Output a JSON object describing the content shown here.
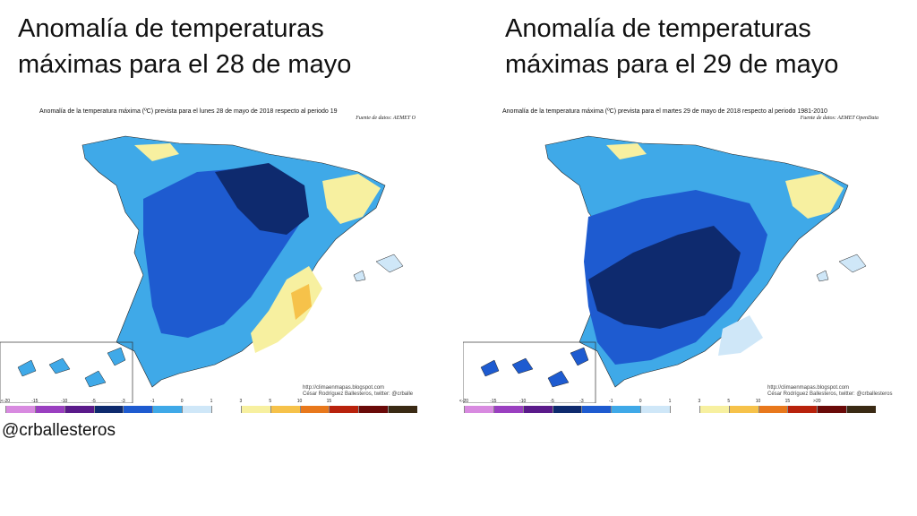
{
  "panels": [
    {
      "title": "Anomalía de temperaturas\nmáximas para el 28 de mayo",
      "map_header": "Anomalía de la temperatura máxima (ºC) prevista para el lunes 28 de mayo de 2018 respecto al periodo 19",
      "map_source": "Fuente de datos: AEMET O",
      "credit_url": "http://climaenmapas.blogspot.com",
      "credit_author": "César Rodríguez Ballesteros, twitter: @crballe"
    },
    {
      "title": "Anomalía de temperaturas\nmáximas para el 29 de mayo",
      "map_header": "Anomalía de la temperatura máxima (ºC) prevista para el martes 29 de mayo de 2018 respecto al periodo 1981-2010",
      "map_source": "Fuente de datos: AEMET OpenData",
      "credit_url": "http://climaenmapas.blogspot.com",
      "credit_author": "César Rodríguez Ballesteros, twitter: @crballesteros"
    }
  ],
  "legend": {
    "tick_labels_left": [
      "<-20",
      "-15",
      "-10",
      "-5",
      "-3",
      "-1",
      "0",
      "1",
      "3",
      "5",
      "10",
      "15",
      ""
    ],
    "tick_labels_right": [
      "<-20",
      "-15",
      "-10",
      "-5",
      "-3",
      "-1",
      "0",
      "1",
      "3",
      "5",
      "10",
      "15",
      ">20"
    ],
    "colors": [
      "#d88ae0",
      "#9a3fc0",
      "#5a1a8a",
      "#0e2a6e",
      "#1e5bd0",
      "#3fa9e8",
      "#cfe7f8",
      "#ffffff",
      "#f7f0a0",
      "#f6c24a",
      "#e8781c",
      "#b8220c",
      "#6a0a08",
      "#3a2a14"
    ]
  },
  "handle": "@crballesteros"
}
